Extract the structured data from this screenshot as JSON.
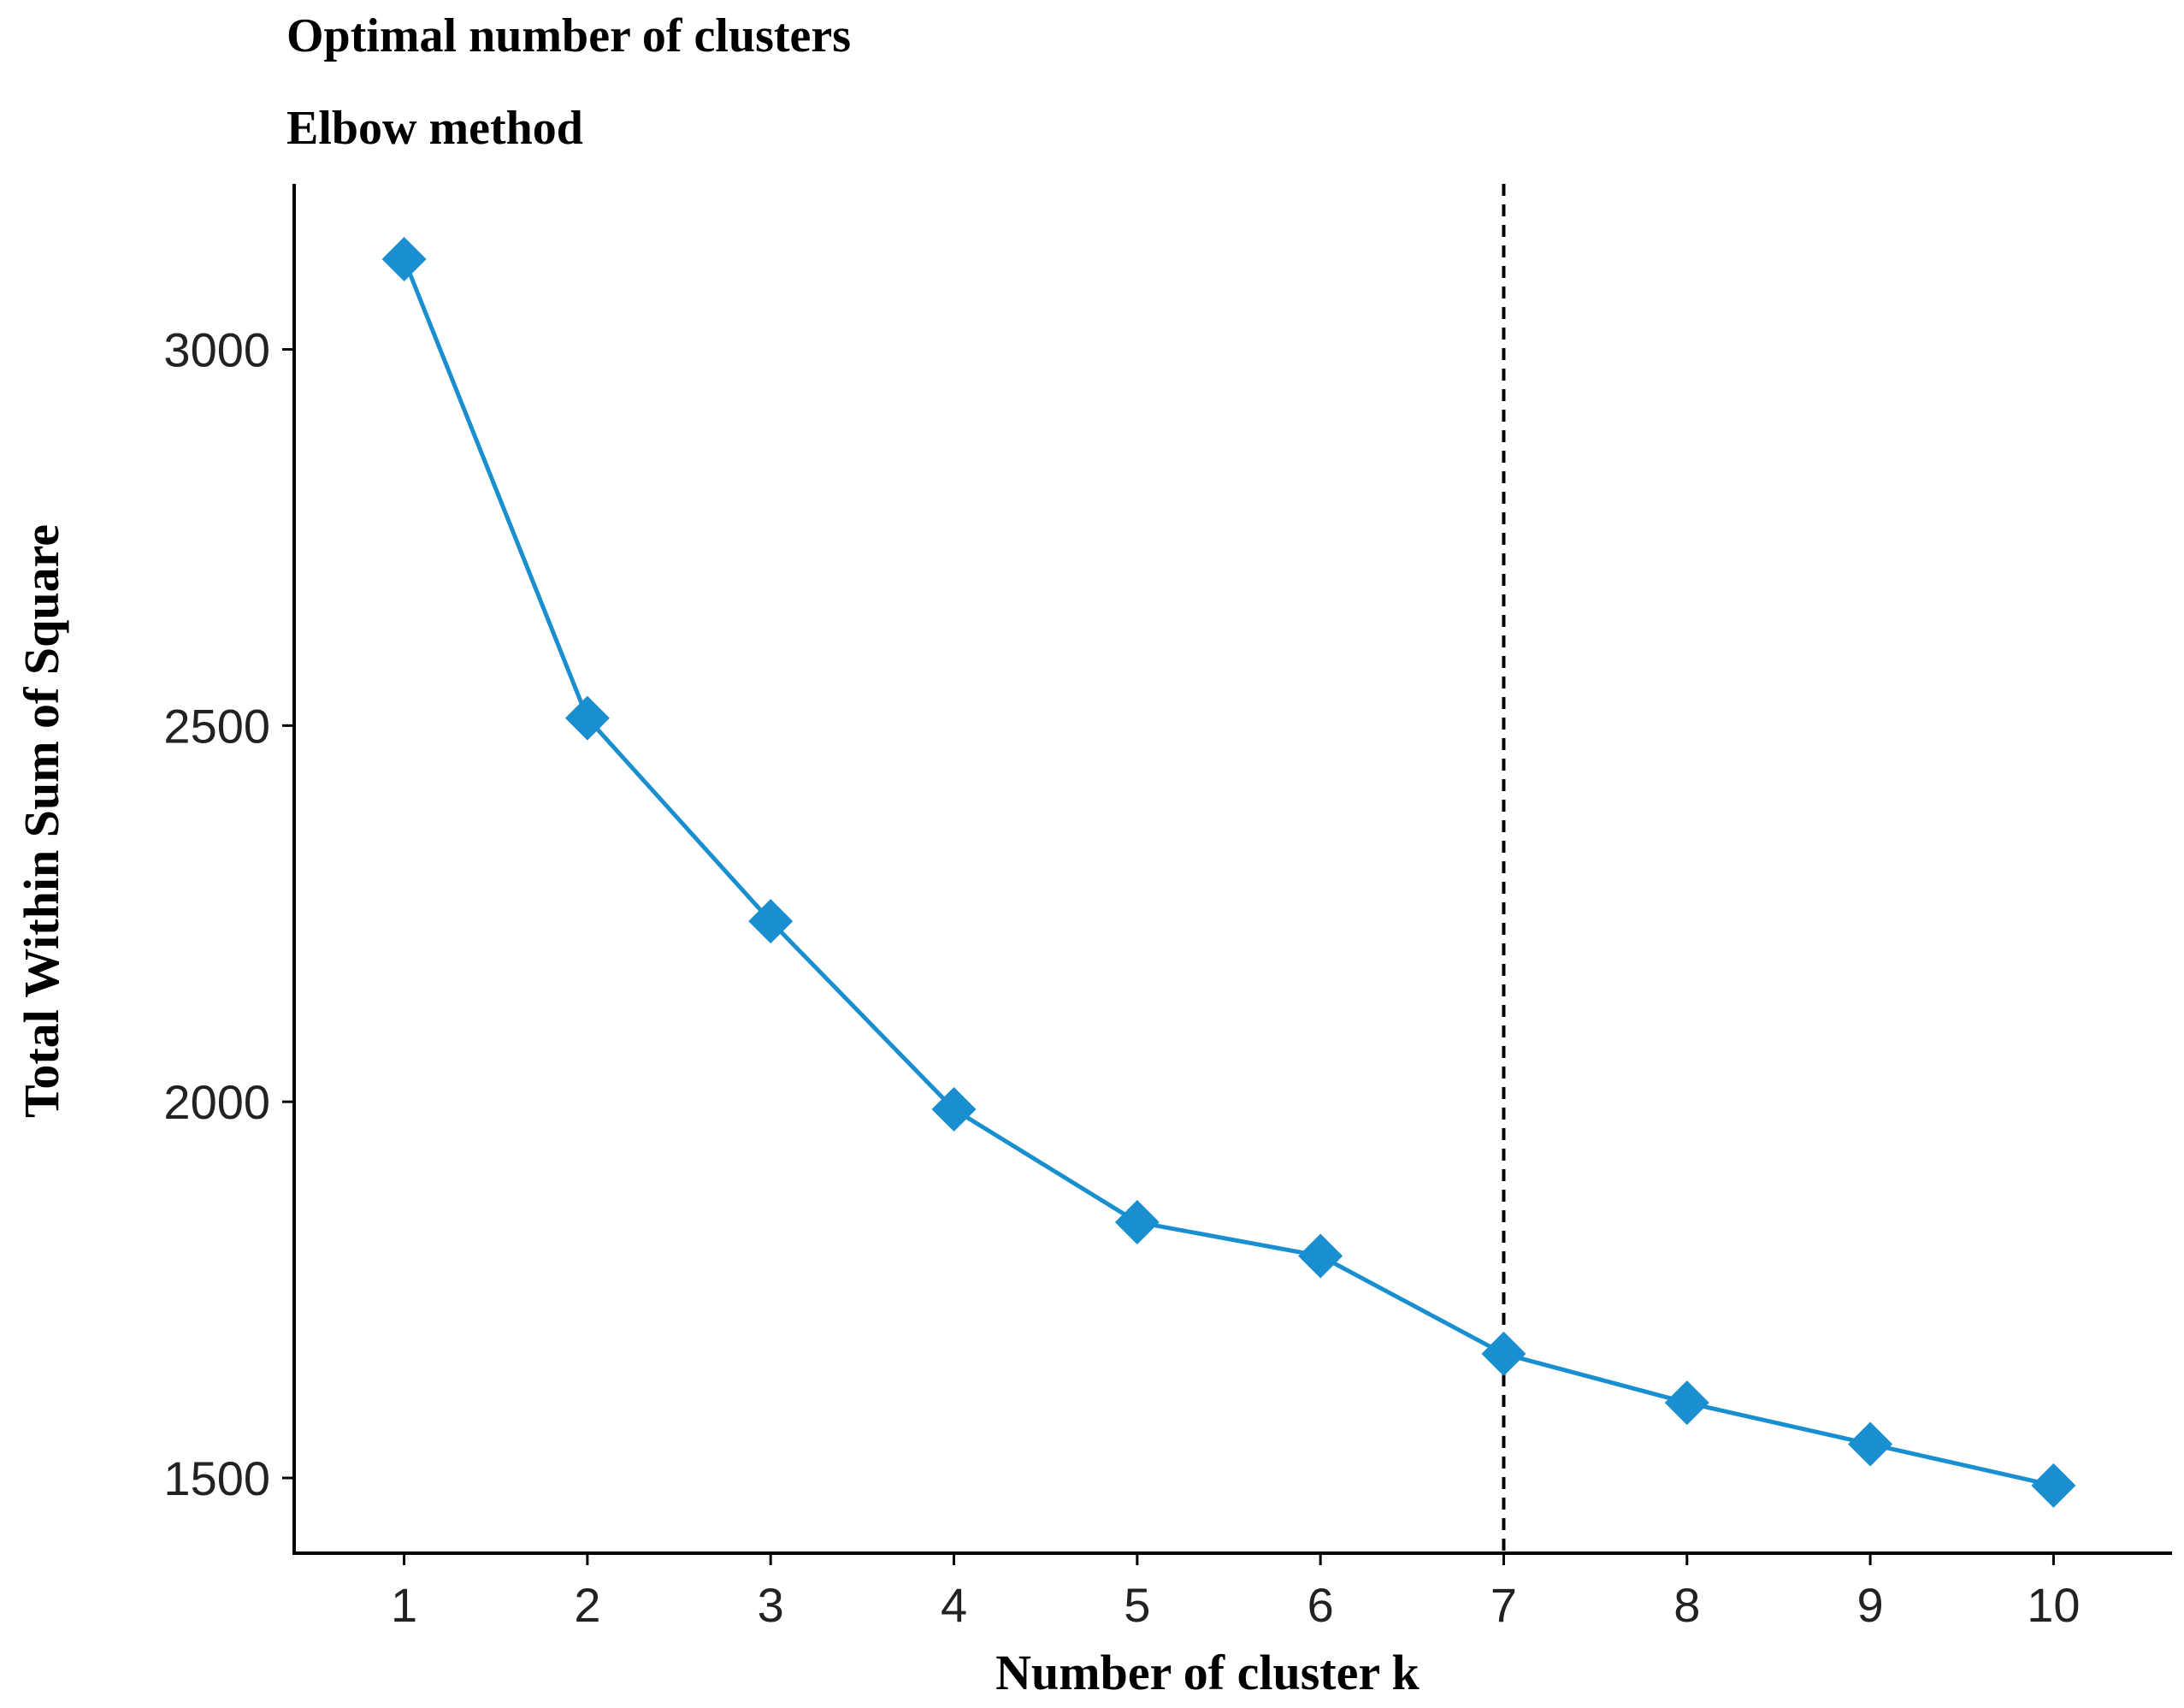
{
  "chart_data": {
    "type": "line",
    "title": "Optimal number of clusters",
    "subtitle": "Elbow method",
    "xlabel": "Number of cluster  k",
    "ylabel": "Total Within Sum of Square",
    "x": [
      1,
      2,
      3,
      4,
      5,
      6,
      7,
      8,
      9,
      10
    ],
    "x_tick_labels": [
      "1",
      "2",
      "3",
      "4",
      "5",
      "6",
      "7",
      "8",
      "9",
      "10"
    ],
    "y_ticks": [
      1500,
      2000,
      2500,
      3000
    ],
    "y_tick_labels": [
      "1500",
      "2000",
      "2500",
      "3000"
    ],
    "xlim": [
      0.4,
      10.6
    ],
    "ylim": [
      1400,
      3220
    ],
    "series": [
      {
        "values": [
          3120,
          2510,
          2240,
          1990,
          1840,
          1795,
          1665,
          1600,
          1545,
          1490
        ],
        "color": "#1a8fd0",
        "marker": "diamond"
      }
    ],
    "vline": {
      "x": 7,
      "style": "dashed",
      "color": "#000000"
    },
    "grid": false,
    "legend": "none"
  }
}
